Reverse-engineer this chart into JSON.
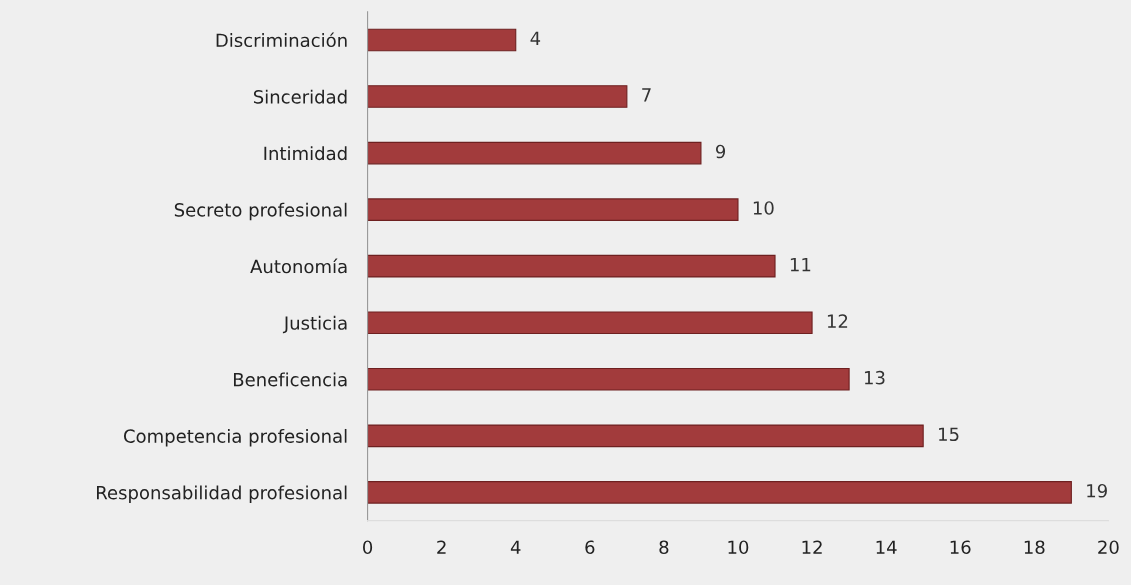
{
  "chart_data": {
    "type": "bar",
    "orientation": "horizontal",
    "categories": [
      "Discriminación",
      "Sinceridad",
      "Intimidad",
      "Secreto profesional",
      "Autonomía",
      "Justicia",
      "Beneficencia",
      "Competencia profesional",
      "Responsabilidad profesional"
    ],
    "values": [
      4,
      7,
      9,
      10,
      11,
      12,
      13,
      15,
      19
    ],
    "color": "#a23b3c",
    "xlim": [
      0,
      20
    ],
    "xticks": [
      0,
      2,
      4,
      6,
      8,
      10,
      12,
      14,
      16,
      18,
      20
    ],
    "data_labels": true,
    "grid": false
  }
}
